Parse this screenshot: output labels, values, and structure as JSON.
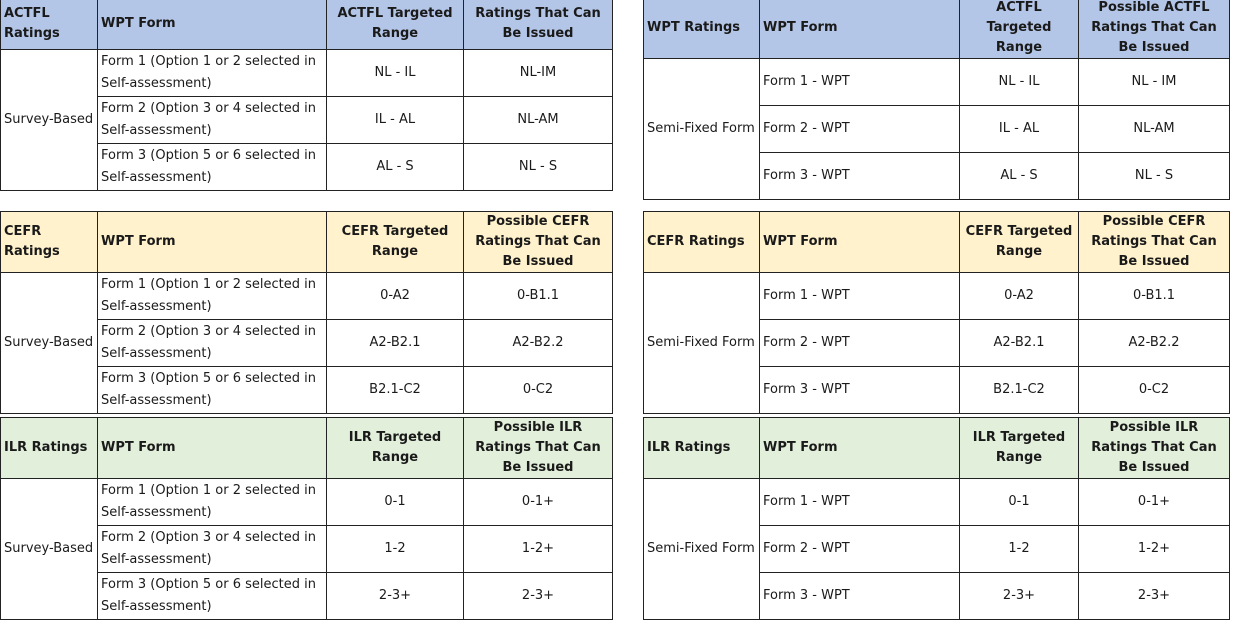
{
  "tables": [
    {
      "id": "actfl-survey",
      "headers": [
        "ACTFL Ratings",
        "WPT Form",
        "ACTFL Targeted Range",
        "Ratings That Can Be Issued"
      ],
      "group": "Survey-Based",
      "rows": [
        {
          "form": "Form 1 (Option 1 or 2 selected in Self-assessment)",
          "range": "NL - IL",
          "issued": "NL-IM"
        },
        {
          "form": "Form 2 (Option 3 or 4 selected in Self-assessment)",
          "range": "IL - AL",
          "issued": "NL-AM"
        },
        {
          "form": "Form 3 (Option 5 or 6 selected in Self-assessment)",
          "range": "AL - S",
          "issued": "NL - S"
        }
      ]
    },
    {
      "id": "actfl-semi",
      "headers": [
        "WPT Ratings",
        "WPT Form",
        "ACTFL Targeted Range",
        "Possible ACTFL Ratings That Can Be Issued"
      ],
      "group": "Semi-Fixed Form",
      "rows": [
        {
          "form": "Form 1 - WPT",
          "range": "NL - IL",
          "issued": "NL - IM"
        },
        {
          "form": "Form 2 - WPT",
          "range": "IL - AL",
          "issued": "NL-AM"
        },
        {
          "form": "Form 3 - WPT",
          "range": "AL - S",
          "issued": "NL - S"
        }
      ]
    },
    {
      "id": "cefr-survey",
      "headers": [
        "CEFR Ratings",
        "WPT Form",
        "CEFR Targeted Range",
        "Possible CEFR Ratings That Can Be Issued"
      ],
      "group": "Survey-Based",
      "rows": [
        {
          "form": "Form 1 (Option 1 or 2 selected in Self-assessment)",
          "range": "0-A2",
          "issued": "0-B1.1"
        },
        {
          "form": "Form 2 (Option 3 or 4 selected in Self-assessment)",
          "range": "A2-B2.1",
          "issued": "A2-B2.2"
        },
        {
          "form": "Form 3 (Option 5 or 6 selected in Self-assessment)",
          "range": "B2.1-C2",
          "issued": "0-C2"
        }
      ]
    },
    {
      "id": "cefr-semi",
      "headers": [
        "CEFR Ratings",
        "WPT Form",
        "CEFR Targeted Range",
        "Possible CEFR Ratings That Can Be Issued"
      ],
      "group": "Semi-Fixed Form",
      "rows": [
        {
          "form": "Form 1 - WPT",
          "range": "0-A2",
          "issued": "0-B1.1"
        },
        {
          "form": "Form 2 - WPT",
          "range": "A2-B2.1",
          "issued": "A2-B2.2"
        },
        {
          "form": "Form 3 - WPT",
          "range": "B2.1-C2",
          "issued": "0-C2"
        }
      ]
    },
    {
      "id": "ilr-survey",
      "headers": [
        "ILR Ratings",
        "WPT Form",
        "ILR Targeted Range",
        "Possible ILR Ratings That Can Be Issued"
      ],
      "group": "Survey-Based",
      "rows": [
        {
          "form": "Form 1 (Option 1 or 2 selected in Self-assessment)",
          "range": "0-1",
          "issued": "0-1+"
        },
        {
          "form": "Form 2 (Option 3 or 4 selected in Self-assessment)",
          "range": "1-2",
          "issued": "1-2+"
        },
        {
          "form": "Form 3 (Option 5 or 6 selected in Self-assessment)",
          "range": "2-3+",
          "issued": "2-3+"
        }
      ]
    },
    {
      "id": "ilr-semi",
      "headers": [
        "ILR Ratings",
        "WPT Form",
        "ILR Targeted Range",
        "Possible ILR Ratings That Can Be Issued"
      ],
      "group": "Semi-Fixed Form",
      "rows": [
        {
          "form": "Form 1 - WPT",
          "range": "0-1",
          "issued": "0-1+"
        },
        {
          "form": "Form 2 - WPT",
          "range": "1-2",
          "issued": "1-2+"
        },
        {
          "form": "Form 3 - WPT",
          "range": "2-3+",
          "issued": "2-3+"
        }
      ]
    }
  ]
}
